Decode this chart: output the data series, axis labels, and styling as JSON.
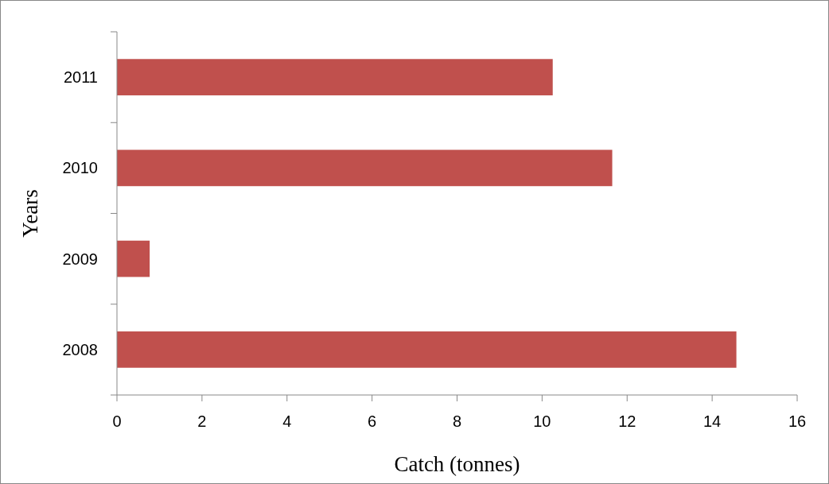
{
  "chart_data": {
    "type": "bar",
    "orientation": "horizontal",
    "xlabel": "Catch (tonnes)",
    "ylabel": "Years",
    "categories": [
      "2011",
      "2010",
      "2009",
      "2008"
    ],
    "values": [
      10.25,
      11.65,
      0.77,
      14.57
    ],
    "color": "#c0504d",
    "xlim": [
      0,
      16
    ],
    "xticks": [
      0,
      2,
      4,
      6,
      8,
      10,
      12,
      14,
      16
    ],
    "grid": false
  }
}
